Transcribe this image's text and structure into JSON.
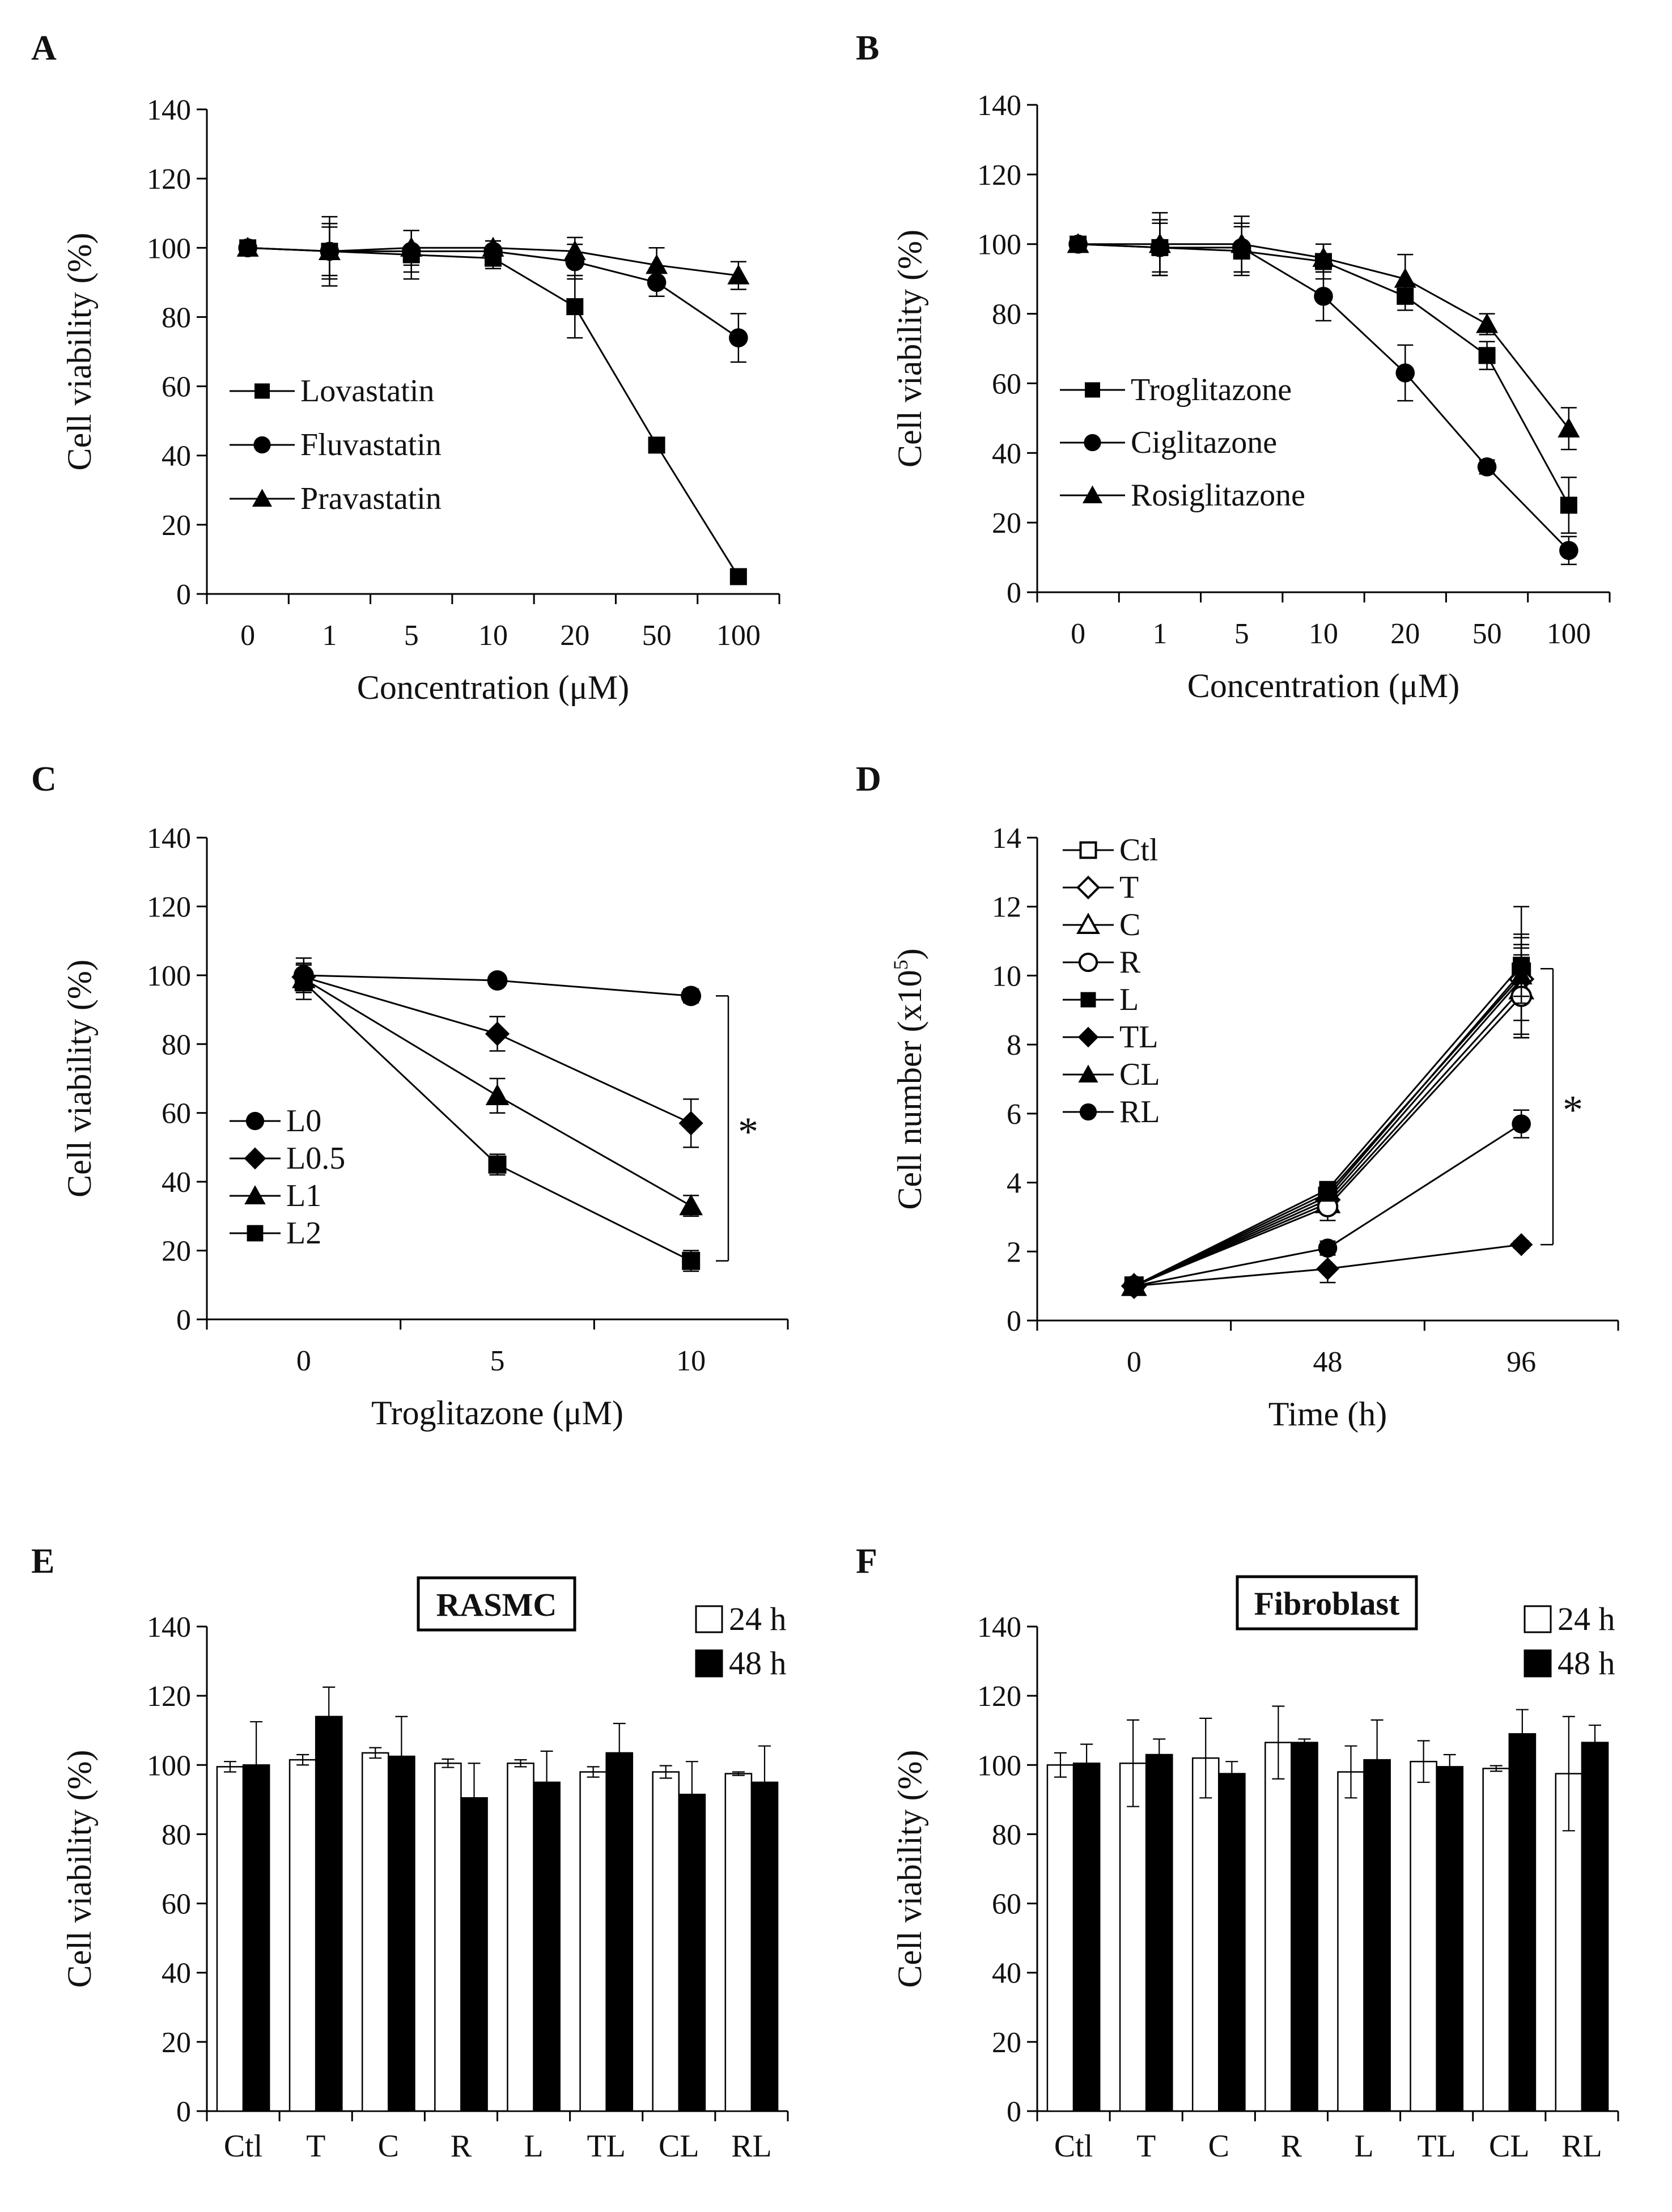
{
  "chart_data": [
    {
      "panel": "A",
      "type": "line",
      "xlabel": "Concentration (μM)",
      "ylabel": "Cell viability (%)",
      "categories": [
        "0",
        "1",
        "5",
        "10",
        "20",
        "50",
        "100"
      ],
      "ylim": [
        0,
        140
      ],
      "yticks": [
        0,
        20,
        40,
        60,
        80,
        100,
        120,
        140
      ],
      "series": [
        {
          "name": "Lovastatin",
          "marker": "square",
          "values": [
            100,
            99,
            98,
            97,
            83,
            43,
            5
          ],
          "errors": [
            0,
            10,
            7,
            3,
            9,
            2,
            1
          ]
        },
        {
          "name": "Fluvastatin",
          "marker": "circle",
          "values": [
            100,
            99,
            99,
            99,
            96,
            90,
            74
          ],
          "errors": [
            0,
            8,
            6,
            3,
            5,
            4,
            7
          ]
        },
        {
          "name": "Pravastatin",
          "marker": "triangle",
          "values": [
            100,
            99,
            100,
            100,
            99,
            95,
            92
          ],
          "errors": [
            0,
            7,
            5,
            2,
            4,
            5,
            4
          ]
        }
      ]
    },
    {
      "panel": "B",
      "type": "line",
      "xlabel": "Concentration (μM)",
      "ylabel": "Cell viability (%)",
      "categories": [
        "0",
        "1",
        "5",
        "10",
        "20",
        "50",
        "100"
      ],
      "ylim": [
        0,
        140
      ],
      "yticks": [
        0,
        20,
        40,
        60,
        80,
        100,
        120,
        140
      ],
      "series": [
        {
          "name": "Troglitazone",
          "marker": "square",
          "values": [
            100,
            99,
            98,
            95,
            85,
            68,
            25
          ],
          "errors": [
            0,
            8,
            7,
            5,
            4,
            4,
            8
          ]
        },
        {
          "name": "Ciglitazone",
          "marker": "circle",
          "values": [
            100,
            99,
            99,
            85,
            63,
            36,
            12
          ],
          "errors": [
            0,
            7,
            7,
            7,
            8,
            2,
            4
          ]
        },
        {
          "name": "Rosiglitazone",
          "marker": "triangle",
          "values": [
            100,
            100,
            100,
            96,
            90,
            77,
            47
          ],
          "errors": [
            0,
            9,
            8,
            4,
            7,
            3,
            6
          ]
        }
      ]
    },
    {
      "panel": "C",
      "type": "line",
      "xlabel": "Troglitazone (μM)",
      "ylabel": "Cell viability (%)",
      "categories": [
        "0",
        "5",
        "10"
      ],
      "ylim": [
        0,
        140
      ],
      "yticks": [
        0,
        20,
        40,
        60,
        80,
        100,
        120,
        140
      ],
      "annotation": "*",
      "series": [
        {
          "name": "L0",
          "marker": "circle",
          "values": [
            100,
            98.5,
            94
          ],
          "errors": [
            5,
            1,
            2
          ]
        },
        {
          "name": "L0.5",
          "marker": "diamond",
          "values": [
            99.5,
            83,
            57
          ],
          "errors": [
            4,
            5,
            7
          ]
        },
        {
          "name": "L1",
          "marker": "triangle",
          "values": [
            99,
            65,
            33
          ],
          "errors": [
            4,
            5,
            3
          ]
        },
        {
          "name": "L2",
          "marker": "square",
          "values": [
            98,
            45,
            17
          ],
          "errors": [
            5,
            3,
            3
          ]
        }
      ]
    },
    {
      "panel": "D",
      "type": "line",
      "xlabel": "Time (h)",
      "ylabel": "Cell number (x10",
      "ylabel_sup": "5",
      "ylabel_end": ")",
      "categories": [
        "0",
        "48",
        "96"
      ],
      "ylim": [
        0,
        14
      ],
      "yticks": [
        0,
        2,
        4,
        6,
        8,
        10,
        12,
        14
      ],
      "annotation": "*",
      "series": [
        {
          "name": "Ctl",
          "marker": "square-open",
          "values": [
            1,
            3.6,
            10.1
          ],
          "errors": [
            0.1,
            0.3,
            1.9
          ]
        },
        {
          "name": "T",
          "marker": "diamond-open",
          "values": [
            1,
            3.5,
            9.9
          ],
          "errors": [
            0.1,
            0.3,
            1.2
          ]
        },
        {
          "name": "C",
          "marker": "triangle-open",
          "values": [
            1,
            3.4,
            9.6
          ],
          "errors": [
            0.1,
            0.3,
            1.3
          ]
        },
        {
          "name": "R",
          "marker": "circle-open",
          "values": [
            1,
            3.3,
            9.4
          ],
          "errors": [
            0.1,
            0.4,
            1.2
          ]
        },
        {
          "name": "L",
          "marker": "square",
          "values": [
            1,
            3.8,
            10.3
          ],
          "errors": [
            0.1,
            0.2,
            0.9
          ]
        },
        {
          "name": "TL",
          "marker": "diamond",
          "values": [
            1,
            1.5,
            2.2
          ],
          "errors": [
            0.1,
            0.4,
            0.1
          ]
        },
        {
          "name": "CL",
          "marker": "triangle",
          "values": [
            1,
            3.7,
            10.0
          ],
          "errors": [
            0.1,
            0.2,
            0.8
          ]
        },
        {
          "name": "RL",
          "marker": "circle",
          "values": [
            1,
            2.1,
            5.7
          ],
          "errors": [
            0.1,
            0.2,
            0.4
          ]
        }
      ]
    },
    {
      "panel": "E",
      "type": "bar",
      "title": "RASMC",
      "ylabel": "Cell viability (%)",
      "categories": [
        "Ctl",
        "T",
        "C",
        "R",
        "L",
        "TL",
        "CL",
        "RL"
      ],
      "ylim": [
        0,
        140
      ],
      "yticks": [
        0,
        20,
        40,
        60,
        80,
        100,
        120,
        140
      ],
      "series": [
        {
          "name": "24 h",
          "fill": "#ffffff",
          "values": [
            99.5,
            101.5,
            103.5,
            100.5,
            100.5,
            98,
            98,
            97.5
          ],
          "errors": [
            1.5,
            1.5,
            1.5,
            1.2,
            1.0,
            1.5,
            1.8,
            0.5
          ]
        },
        {
          "name": "48 h",
          "fill": "#000000",
          "values": [
            100,
            114,
            102.5,
            90.5,
            95,
            103.5,
            91.5,
            95
          ],
          "errors": [
            12.5,
            8.5,
            11.5,
            10,
            9,
            8.5,
            9.5,
            10.5
          ]
        }
      ]
    },
    {
      "panel": "F",
      "type": "bar",
      "title": "Fibroblast",
      "ylabel": "Cell viability (%)",
      "categories": [
        "Ctl",
        "T",
        "C",
        "R",
        "L",
        "TL",
        "CL",
        "RL"
      ],
      "ylim": [
        0,
        140
      ],
      "yticks": [
        0,
        20,
        40,
        60,
        80,
        100,
        120,
        140
      ],
      "series": [
        {
          "name": "24 h",
          "fill": "#ffffff",
          "values": [
            100,
            100.5,
            102,
            106.5,
            98,
            101,
            99,
            97.5
          ],
          "errors": [
            3.5,
            12.5,
            11.5,
            10.5,
            7.5,
            6,
            0.8,
            16.5
          ]
        },
        {
          "name": "48 h",
          "fill": "#000000",
          "values": [
            100.5,
            103,
            97.5,
            106.5,
            101.5,
            99.5,
            109,
            106.5
          ],
          "errors": [
            5.5,
            4.5,
            3.5,
            1.0,
            11.5,
            3.5,
            7,
            5
          ]
        }
      ]
    }
  ]
}
